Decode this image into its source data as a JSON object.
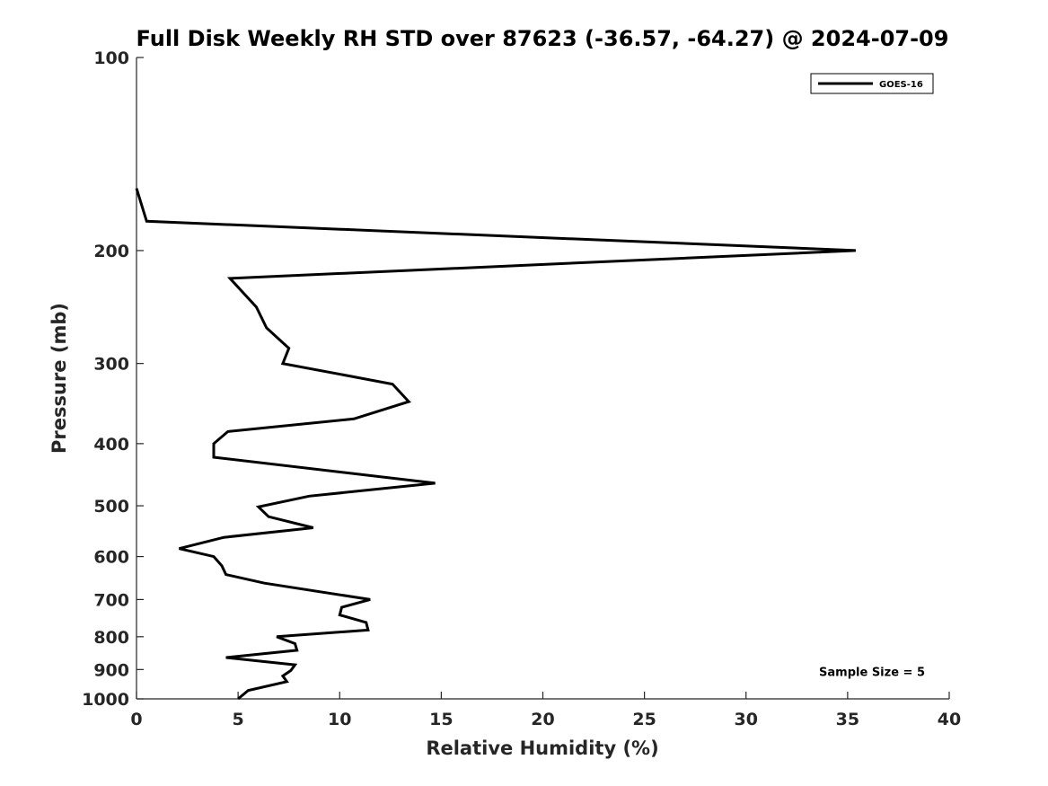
{
  "chart_data": {
    "type": "line",
    "title": "Full Disk Weekly RH STD over 87623 (-36.57, -64.27) @ 2024-07-09",
    "xlabel": "Relative Humidity (%)",
    "ylabel": "Pressure (mb)",
    "xlim": [
      0,
      40
    ],
    "ylim": [
      1000,
      100
    ],
    "y_scale": "log",
    "y_reversed": true,
    "grid": false,
    "legend_position": "top-right",
    "x_ticks": [
      0,
      5,
      10,
      15,
      20,
      25,
      30,
      35,
      40
    ],
    "x_tick_labels": [
      "0",
      "5",
      "10",
      "15",
      "20",
      "25",
      "30",
      "35",
      "40"
    ],
    "y_ticks": [
      100,
      200,
      300,
      400,
      500,
      600,
      700,
      800,
      900,
      1000
    ],
    "y_tick_labels": [
      "100",
      "200",
      "300",
      "400",
      "500",
      "600",
      "700",
      "800",
      "900",
      "1000"
    ],
    "series": [
      {
        "name": "GOES-16",
        "color": "#000000",
        "points": [
          {
            "x": 0.0,
            "y": 160
          },
          {
            "x": 0.5,
            "y": 180
          },
          {
            "x": 35.4,
            "y": 200
          },
          {
            "x": 4.6,
            "y": 221
          },
          {
            "x": 5.9,
            "y": 245
          },
          {
            "x": 6.4,
            "y": 264
          },
          {
            "x": 7.5,
            "y": 284
          },
          {
            "x": 7.2,
            "y": 300
          },
          {
            "x": 12.6,
            "y": 323
          },
          {
            "x": 13.4,
            "y": 344
          },
          {
            "x": 10.7,
            "y": 366
          },
          {
            "x": 4.5,
            "y": 383
          },
          {
            "x": 3.8,
            "y": 400
          },
          {
            "x": 3.8,
            "y": 420
          },
          {
            "x": 14.7,
            "y": 461
          },
          {
            "x": 8.5,
            "y": 483
          },
          {
            "x": 6.0,
            "y": 502
          },
          {
            "x": 6.5,
            "y": 520
          },
          {
            "x": 8.7,
            "y": 541
          },
          {
            "x": 4.3,
            "y": 560
          },
          {
            "x": 2.1,
            "y": 583
          },
          {
            "x": 3.8,
            "y": 600
          },
          {
            "x": 4.2,
            "y": 620
          },
          {
            "x": 4.4,
            "y": 640
          },
          {
            "x": 6.3,
            "y": 660
          },
          {
            "x": 11.5,
            "y": 700
          },
          {
            "x": 10.1,
            "y": 720
          },
          {
            "x": 10.0,
            "y": 740
          },
          {
            "x": 11.3,
            "y": 760
          },
          {
            "x": 11.4,
            "y": 781
          },
          {
            "x": 6.9,
            "y": 800
          },
          {
            "x": 7.8,
            "y": 820
          },
          {
            "x": 7.9,
            "y": 840
          },
          {
            "x": 4.4,
            "y": 862
          },
          {
            "x": 7.8,
            "y": 885
          },
          {
            "x": 7.6,
            "y": 903
          },
          {
            "x": 7.2,
            "y": 921
          },
          {
            "x": 7.4,
            "y": 940
          },
          {
            "x": 5.5,
            "y": 970
          },
          {
            "x": 5.0,
            "y": 1000
          }
        ]
      }
    ],
    "annotations": [
      {
        "text": "Sample Size = 5",
        "x": 36.2,
        "y": 906
      }
    ]
  }
}
